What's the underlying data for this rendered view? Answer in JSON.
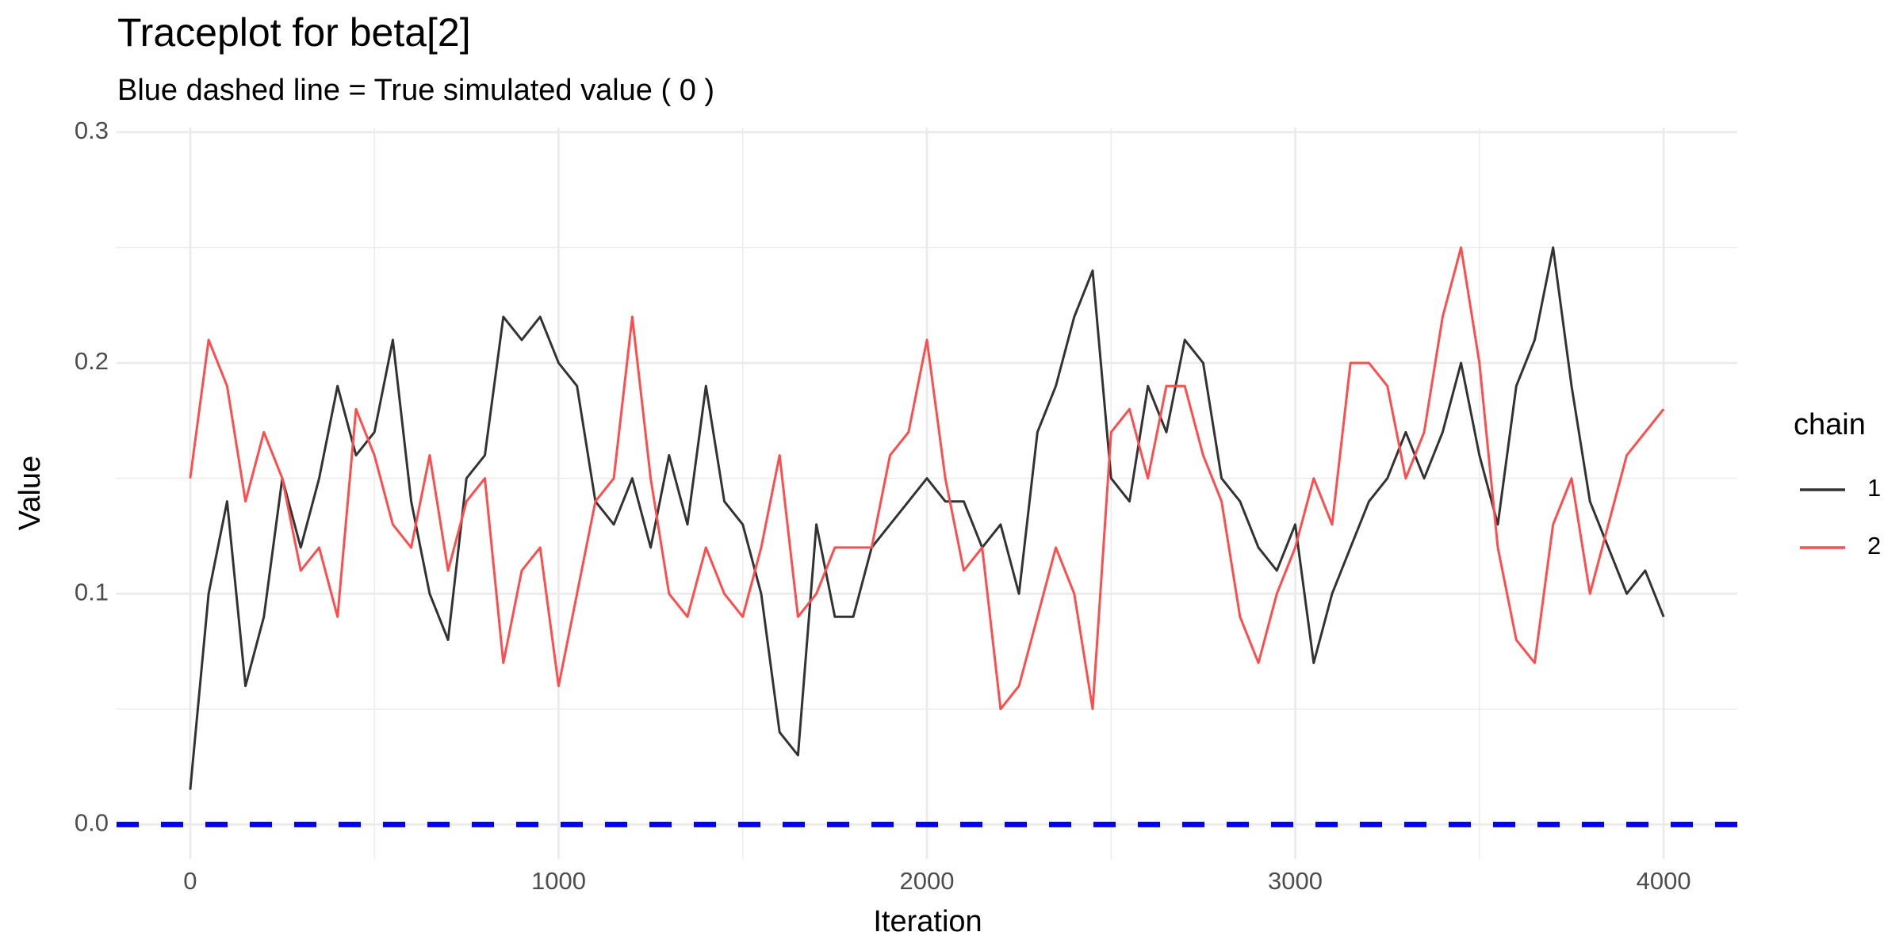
{
  "chart_data": {
    "type": "line",
    "title": "Traceplot for beta[2]",
    "subtitle": "Blue dashed line = True simulated value ( 0 )",
    "x_label": "Iteration",
    "y_label": "Value",
    "legend_title": "chain",
    "legend_position": "right",
    "grid": true,
    "xlim": [
      -200,
      4200
    ],
    "ylim": [
      -0.015,
      0.302
    ],
    "xticks": [
      0,
      1000,
      2000,
      3000,
      4000
    ],
    "xminorticks": [
      500,
      1500,
      2500,
      3500
    ],
    "yticks": [
      {
        "value": 0,
        "label": "0.0"
      },
      0.1,
      0.2,
      0.3
    ],
    "yminorticks": [
      0.05,
      0.15,
      0.25
    ],
    "reference_line": {
      "value": 0,
      "color": "#0000ff",
      "linestyle": "dashed"
    },
    "x": [
      0,
      50,
      100,
      150,
      200,
      250,
      300,
      350,
      400,
      450,
      500,
      550,
      600,
      650,
      700,
      750,
      800,
      850,
      900,
      950,
      1000,
      1050,
      1100,
      1150,
      1200,
      1250,
      1300,
      1350,
      1400,
      1450,
      1500,
      1550,
      1600,
      1650,
      1700,
      1750,
      1800,
      1850,
      1900,
      1950,
      2000,
      2050,
      2100,
      2150,
      2200,
      2250,
      2300,
      2350,
      2400,
      2450,
      2500,
      2550,
      2600,
      2650,
      2700,
      2750,
      2800,
      2850,
      2900,
      2950,
      3000,
      3050,
      3100,
      3150,
      3200,
      3250,
      3300,
      3350,
      3400,
      3450,
      3500,
      3550,
      3600,
      3650,
      3700,
      3750,
      3800,
      3850,
      3900,
      3950,
      4000
    ],
    "series": [
      {
        "name": "1",
        "color": "#333333",
        "values": [
          0.015,
          0.1,
          0.14,
          0.06,
          0.09,
          0.15,
          0.12,
          0.15,
          0.19,
          0.16,
          0.17,
          0.21,
          0.14,
          0.1,
          0.08,
          0.15,
          0.16,
          0.22,
          0.21,
          0.22,
          0.2,
          0.19,
          0.14,
          0.13,
          0.15,
          0.12,
          0.16,
          0.13,
          0.19,
          0.14,
          0.13,
          0.1,
          0.04,
          0.03,
          0.13,
          0.09,
          0.09,
          0.12,
          0.13,
          0.14,
          0.15,
          0.14,
          0.14,
          0.12,
          0.13,
          0.1,
          0.17,
          0.19,
          0.22,
          0.24,
          0.15,
          0.14,
          0.19,
          0.17,
          0.21,
          0.2,
          0.15,
          0.14,
          0.12,
          0.11,
          0.13,
          0.07,
          0.1,
          0.12,
          0.14,
          0.15,
          0.17,
          0.15,
          0.17,
          0.2,
          0.16,
          0.13,
          0.19,
          0.21,
          0.25,
          0.19,
          0.14,
          0.12,
          0.1,
          0.11,
          0.09
        ]
      },
      {
        "name": "2",
        "color": "#ff4d4d",
        "values": [
          0.15,
          0.21,
          0.19,
          0.14,
          0.17,
          0.15,
          0.11,
          0.12,
          0.09,
          0.18,
          0.16,
          0.13,
          0.12,
          0.16,
          0.11,
          0.14,
          0.15,
          0.07,
          0.11,
          0.12,
          0.06,
          0.1,
          0.14,
          0.15,
          0.22,
          0.15,
          0.1,
          0.09,
          0.12,
          0.1,
          0.09,
          0.12,
          0.16,
          0.09,
          0.1,
          0.12,
          0.12,
          0.12,
          0.16,
          0.17,
          0.21,
          0.15,
          0.11,
          0.12,
          0.05,
          0.06,
          0.09,
          0.12,
          0.1,
          0.05,
          0.17,
          0.18,
          0.15,
          0.19,
          0.19,
          0.16,
          0.14,
          0.09,
          0.07,
          0.1,
          0.12,
          0.15,
          0.13,
          0.2,
          0.2,
          0.19,
          0.15,
          0.17,
          0.22,
          0.25,
          0.2,
          0.12,
          0.08,
          0.07,
          0.13,
          0.15,
          0.1,
          0.13,
          0.16,
          0.17,
          0.18
        ]
      }
    ]
  }
}
